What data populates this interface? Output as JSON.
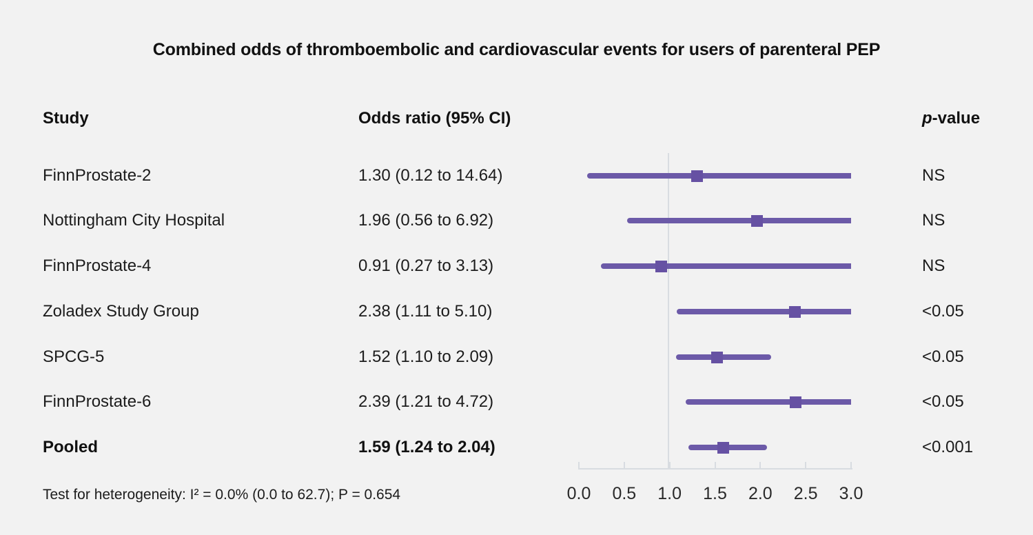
{
  "title": "Combined odds of thromboembolic and cardiovascular events for users of parenteral PEP",
  "columns": {
    "study": "Study",
    "odds_ratio": "Odds ratio (95% CI)",
    "p_value_italic": "p",
    "p_value_rest": "-value"
  },
  "footnote": "Test for heterogeneity: I² = 0.0% (0.0 to 62.7); P = 0.654",
  "colors": {
    "background": "#f2f2f2",
    "text": "#1c1c1c",
    "ci_line": "#6c5aa8",
    "marker": "#6651a3",
    "axis_gray": "#d8dce1"
  },
  "chart_data": {
    "type": "forest",
    "title": "Combined odds of thromboembolic and cardiovascular events for users of parenteral PEP",
    "xlim": [
      0.0,
      3.0
    ],
    "reference_line": 1.0,
    "axis_ticks": [
      "0.0",
      "0.5",
      "1.0",
      "1.5",
      "2.0",
      "2.5",
      "3.0"
    ],
    "rows": [
      {
        "study": "FinnProstate-2",
        "or_text": "1.30 (0.12 to 14.64)",
        "estimate": 1.3,
        "ci_low": 0.12,
        "ci_high": 14.64,
        "p": "NS",
        "bold": false
      },
      {
        "study": "Nottingham City Hospital",
        "or_text": "1.96 (0.56 to 6.92)",
        "estimate": 1.96,
        "ci_low": 0.56,
        "ci_high": 6.92,
        "p": "NS",
        "bold": false
      },
      {
        "study": "FinnProstate-4",
        "or_text": "0.91 (0.27 to 3.13)",
        "estimate": 0.91,
        "ci_low": 0.27,
        "ci_high": 3.13,
        "p": "NS",
        "bold": false
      },
      {
        "study": "Zoladex Study Group",
        "or_text": "2.38 (1.11 to 5.10)",
        "estimate": 2.38,
        "ci_low": 1.11,
        "ci_high": 5.1,
        "p": "<0.05",
        "bold": false
      },
      {
        "study": "SPCG-5",
        "or_text": "1.52 (1.10 to 2.09)",
        "estimate": 1.52,
        "ci_low": 1.1,
        "ci_high": 2.09,
        "p": "<0.05",
        "bold": false
      },
      {
        "study": "FinnProstate-6",
        "or_text": "2.39 (1.21 to 4.72)",
        "estimate": 2.39,
        "ci_low": 1.21,
        "ci_high": 4.72,
        "p": "<0.05",
        "bold": false
      },
      {
        "study": "Pooled",
        "or_text": "1.59 (1.24 to 2.04)",
        "estimate": 1.59,
        "ci_low": 1.24,
        "ci_high": 2.04,
        "p": "<0.001",
        "bold": true
      }
    ]
  }
}
